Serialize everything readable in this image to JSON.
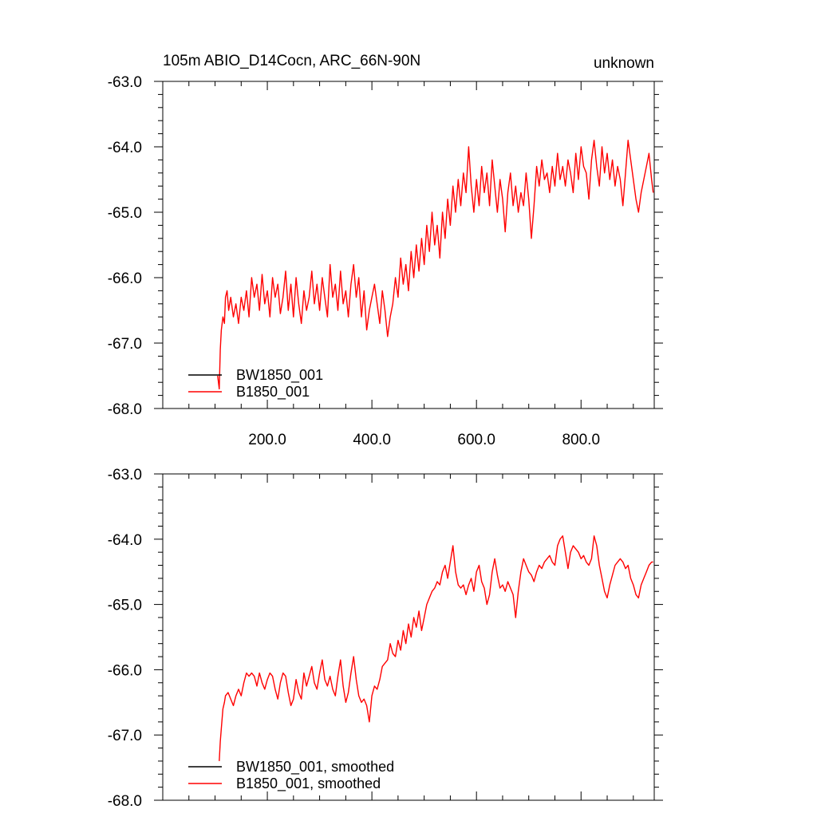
{
  "figure": {
    "title_left": "105m ABIO_D14Cocn, ARC_66N-90N",
    "title_right": "unknown"
  },
  "chart_data": [
    {
      "type": "line",
      "xlim": [
        0,
        940
      ],
      "ylim": [
        -68.0,
        -63.0
      ],
      "xticks": [
        200,
        400,
        600,
        800
      ],
      "xtick_labels": [
        "200.0",
        "400.0",
        "600.0",
        "800.0"
      ],
      "yticks": [
        -68,
        -67,
        -66,
        -65,
        -64,
        -63
      ],
      "ytick_labels": [
        "-68.0",
        "-67.0",
        "-66.0",
        "-65.0",
        "-64.0",
        "-63.0"
      ],
      "show_xtick_labels": true,
      "legend_placement": "bottom-left",
      "series": [
        {
          "name": "BW1850_001",
          "color": "#000000",
          "x": [],
          "y": []
        },
        {
          "name": "B1850_001",
          "color": "#ff0000",
          "x": [
            105,
            108,
            110,
            112,
            115,
            118,
            120,
            123,
            126,
            130,
            135,
            140,
            145,
            150,
            155,
            160,
            165,
            170,
            175,
            180,
            185,
            190,
            195,
            200,
            205,
            210,
            215,
            220,
            225,
            230,
            235,
            240,
            245,
            250,
            255,
            260,
            265,
            270,
            275,
            280,
            285,
            290,
            295,
            300,
            305,
            310,
            315,
            320,
            325,
            330,
            335,
            340,
            345,
            350,
            355,
            360,
            365,
            370,
            375,
            380,
            385,
            390,
            395,
            400,
            405,
            410,
            415,
            420,
            425,
            430,
            435,
            440,
            445,
            450,
            455,
            460,
            465,
            470,
            475,
            480,
            485,
            490,
            495,
            500,
            505,
            510,
            515,
            520,
            525,
            530,
            535,
            540,
            545,
            550,
            555,
            560,
            565,
            570,
            575,
            580,
            585,
            590,
            595,
            600,
            605,
            610,
            615,
            620,
            625,
            630,
            635,
            640,
            645,
            650,
            655,
            660,
            665,
            670,
            675,
            680,
            685,
            690,
            695,
            700,
            705,
            710,
            715,
            720,
            725,
            730,
            735,
            740,
            745,
            750,
            755,
            760,
            765,
            770,
            775,
            780,
            785,
            790,
            795,
            800,
            805,
            810,
            815,
            820,
            825,
            830,
            835,
            840,
            845,
            850,
            855,
            860,
            865,
            870,
            875,
            880,
            885,
            890,
            895,
            900,
            905,
            910,
            915,
            920,
            925,
            930,
            935,
            938
          ],
          "y": [
            -67.5,
            -67.7,
            -67.1,
            -66.8,
            -66.6,
            -66.7,
            -66.3,
            -66.2,
            -66.5,
            -66.3,
            -66.6,
            -66.4,
            -66.7,
            -66.3,
            -66.5,
            -66.2,
            -66.6,
            -66.0,
            -66.3,
            -66.1,
            -66.5,
            -65.95,
            -66.4,
            -66.2,
            -66.6,
            -66.0,
            -66.3,
            -66.1,
            -66.55,
            -66.3,
            -65.9,
            -66.5,
            -66.1,
            -66.6,
            -66.0,
            -66.4,
            -66.7,
            -66.2,
            -66.5,
            -66.3,
            -65.9,
            -66.4,
            -66.1,
            -66.5,
            -66.0,
            -66.3,
            -66.6,
            -65.8,
            -66.3,
            -66.1,
            -66.5,
            -65.9,
            -66.4,
            -66.2,
            -66.6,
            -66.1,
            -65.8,
            -66.3,
            -66.0,
            -66.6,
            -66.2,
            -66.8,
            -66.5,
            -66.3,
            -66.1,
            -66.4,
            -66.7,
            -66.2,
            -66.5,
            -66.9,
            -66.6,
            -66.4,
            -66.0,
            -66.3,
            -65.7,
            -66.1,
            -65.8,
            -66.2,
            -65.6,
            -66.0,
            -65.5,
            -65.9,
            -65.4,
            -65.8,
            -65.2,
            -65.6,
            -65.0,
            -65.5,
            -65.2,
            -65.7,
            -65.0,
            -65.4,
            -64.8,
            -65.2,
            -64.6,
            -65.0,
            -64.5,
            -64.9,
            -64.4,
            -64.7,
            -64.0,
            -64.6,
            -65.0,
            -64.5,
            -64.9,
            -64.3,
            -64.7,
            -64.4,
            -64.9,
            -64.2,
            -64.6,
            -65.0,
            -64.5,
            -64.8,
            -65.3,
            -64.7,
            -64.4,
            -64.9,
            -64.6,
            -65.0,
            -64.7,
            -64.9,
            -64.4,
            -64.8,
            -65.4,
            -64.9,
            -64.3,
            -64.6,
            -64.2,
            -64.5,
            -64.4,
            -64.7,
            -64.3,
            -64.6,
            -64.1,
            -64.5,
            -64.3,
            -64.6,
            -64.2,
            -64.4,
            -64.7,
            -64.1,
            -64.5,
            -64.0,
            -64.3,
            -64.4,
            -64.8,
            -64.2,
            -63.9,
            -64.3,
            -64.6,
            -64.0,
            -64.4,
            -64.1,
            -64.5,
            -64.2,
            -64.6,
            -64.3,
            -64.5,
            -64.9,
            -64.4,
            -63.9,
            -64.2,
            -64.5,
            -64.8,
            -65.0,
            -64.7,
            -64.5,
            -64.3,
            -64.1,
            -64.5,
            -64.7
          ]
        }
      ]
    },
    {
      "type": "line",
      "xlim": [
        0,
        940
      ],
      "ylim": [
        -68.0,
        -63.0
      ],
      "xticks": [
        200,
        400,
        600,
        800
      ],
      "xtick_labels": [],
      "yticks": [
        -68,
        -67,
        -66,
        -65,
        -64,
        -63
      ],
      "ytick_labels": [
        "-68.0",
        "-67.0",
        "-66.0",
        "-65.0",
        "-64.0",
        "-63.0"
      ],
      "show_xtick_labels": false,
      "legend_placement": "bottom-left",
      "series": [
        {
          "name": "BW1850_001, smoothed",
          "color": "#000000",
          "x": [],
          "y": []
        },
        {
          "name": "B1850_001, smoothed",
          "color": "#ff0000",
          "x": [
            108,
            110,
            112,
            115,
            118,
            120,
            125,
            130,
            135,
            140,
            145,
            150,
            155,
            160,
            165,
            170,
            175,
            180,
            185,
            190,
            195,
            200,
            205,
            210,
            215,
            220,
            225,
            230,
            235,
            240,
            245,
            250,
            255,
            260,
            265,
            270,
            275,
            280,
            285,
            290,
            295,
            300,
            305,
            310,
            315,
            320,
            325,
            330,
            335,
            340,
            345,
            350,
            355,
            360,
            365,
            370,
            375,
            380,
            385,
            390,
            395,
            400,
            405,
            410,
            415,
            420,
            425,
            430,
            435,
            440,
            445,
            450,
            455,
            460,
            465,
            470,
            475,
            480,
            485,
            490,
            495,
            500,
            505,
            510,
            515,
            520,
            525,
            530,
            535,
            540,
            545,
            550,
            555,
            560,
            565,
            570,
            575,
            580,
            585,
            590,
            595,
            600,
            605,
            610,
            615,
            620,
            625,
            630,
            635,
            640,
            645,
            650,
            655,
            660,
            665,
            670,
            675,
            680,
            685,
            690,
            695,
            700,
            705,
            710,
            715,
            720,
            725,
            730,
            735,
            740,
            745,
            750,
            755,
            760,
            765,
            770,
            775,
            780,
            785,
            790,
            795,
            800,
            805,
            810,
            815,
            820,
            825,
            830,
            835,
            840,
            845,
            850,
            855,
            860,
            865,
            870,
            875,
            880,
            885,
            890,
            895,
            900,
            905,
            910,
            915,
            920,
            925,
            930,
            935,
            938
          ],
          "y": [
            -67.4,
            -67.1,
            -66.9,
            -66.6,
            -66.5,
            -66.4,
            -66.35,
            -66.45,
            -66.55,
            -66.4,
            -66.3,
            -66.4,
            -66.2,
            -66.05,
            -66.1,
            -66.05,
            -66.1,
            -66.25,
            -66.05,
            -66.2,
            -66.3,
            -66.15,
            -66.05,
            -66.1,
            -66.3,
            -66.45,
            -66.2,
            -66.05,
            -66.1,
            -66.35,
            -66.55,
            -66.45,
            -66.15,
            -66.35,
            -66.45,
            -66.05,
            -66.25,
            -66.1,
            -65.95,
            -66.2,
            -66.3,
            -66.05,
            -65.85,
            -66.15,
            -66.25,
            -66.1,
            -66.3,
            -66.4,
            -66.1,
            -65.85,
            -66.25,
            -66.5,
            -66.35,
            -66.05,
            -65.8,
            -66.15,
            -66.4,
            -66.5,
            -66.45,
            -66.55,
            -66.8,
            -66.4,
            -66.25,
            -66.3,
            -66.15,
            -65.95,
            -65.9,
            -65.85,
            -65.6,
            -65.75,
            -65.8,
            -65.55,
            -65.7,
            -65.4,
            -65.6,
            -65.3,
            -65.5,
            -65.2,
            -65.35,
            -65.1,
            -65.4,
            -65.2,
            -65.0,
            -64.9,
            -64.8,
            -64.75,
            -64.65,
            -64.7,
            -64.5,
            -64.4,
            -64.6,
            -64.35,
            -64.1,
            -64.5,
            -64.7,
            -64.75,
            -64.7,
            -64.85,
            -64.7,
            -64.6,
            -64.8,
            -64.5,
            -64.4,
            -64.65,
            -64.75,
            -65.0,
            -64.85,
            -64.5,
            -64.3,
            -64.55,
            -64.75,
            -64.7,
            -64.8,
            -64.65,
            -64.75,
            -64.85,
            -65.2,
            -64.8,
            -64.5,
            -64.3,
            -64.4,
            -64.5,
            -64.55,
            -64.65,
            -64.5,
            -64.4,
            -64.45,
            -64.35,
            -64.3,
            -64.25,
            -64.35,
            -64.4,
            -64.1,
            -64.0,
            -63.95,
            -64.2,
            -64.45,
            -64.2,
            -64.1,
            -64.15,
            -64.2,
            -64.3,
            -64.25,
            -64.35,
            -64.4,
            -64.3,
            -63.95,
            -64.1,
            -64.4,
            -64.6,
            -64.8,
            -64.9,
            -64.7,
            -64.55,
            -64.4,
            -64.35,
            -64.3,
            -64.35,
            -64.45,
            -64.4,
            -64.6,
            -64.7,
            -64.85,
            -64.9,
            -64.7,
            -64.6,
            -64.5,
            -64.4,
            -64.35,
            -64.35
          ]
        }
      ]
    }
  ]
}
